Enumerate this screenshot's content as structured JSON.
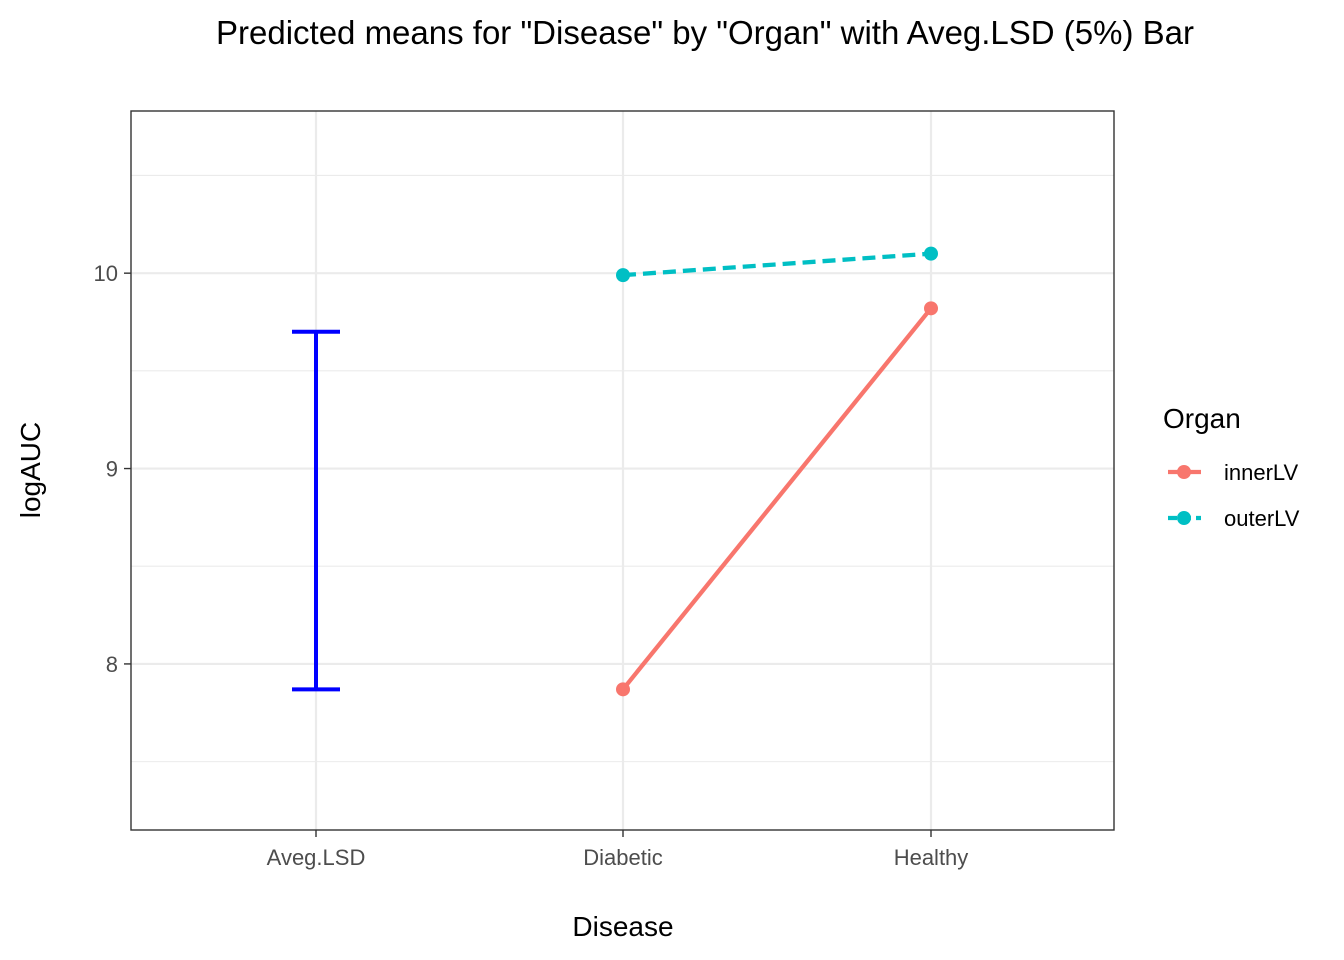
{
  "chart_data": {
    "type": "line",
    "title": "Predicted means for \"Disease\" by \"Organ\" with  Aveg.LSD (5%) Bar",
    "xlabel": "Disease",
    "ylabel": "logAUC",
    "categories": [
      "Aveg.LSD",
      "Diabetic",
      "Healthy"
    ],
    "y_ticks": [
      8,
      9,
      10
    ],
    "ylim": [
      7.15,
      10.83
    ],
    "grid": true,
    "legend": {
      "title": "Organ",
      "placement": "right"
    },
    "series": [
      {
        "name": "innerLV",
        "color": "#F8766D",
        "line_style": "solid",
        "x": [
          "Diabetic",
          "Healthy"
        ],
        "values": [
          7.87,
          9.82
        ]
      },
      {
        "name": "outerLV",
        "color": "#00BFC4",
        "line_style": "dashed",
        "x": [
          "Diabetic",
          "Healthy"
        ],
        "values": [
          9.99,
          10.1
        ]
      }
    ],
    "lsd_bar": {
      "category": "Aveg.LSD",
      "low": 7.87,
      "high": 9.7,
      "color": "#0000FF"
    }
  }
}
